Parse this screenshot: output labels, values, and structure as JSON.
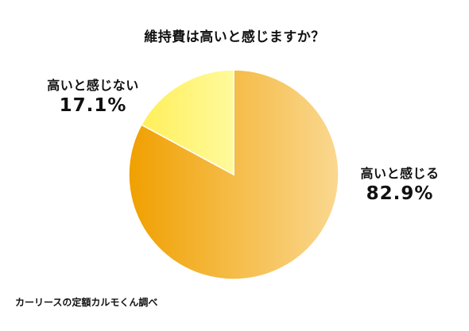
{
  "chart_data": {
    "type": "pie",
    "title": "維持費は高いと感じますか？",
    "categories": [
      "高いと感じる",
      "高いと感じない"
    ],
    "values": [
      82.9,
      17.1
    ],
    "value_labels": [
      "82.9%",
      "17.1%"
    ],
    "colors": {
      "high_gradient_start": "#F0A000",
      "high_gradient_end": "#FAD890",
      "low_gradient_start": "#FFEF5A",
      "low_gradient_end": "#FFFA9C",
      "slice_border": "#FFFFFF"
    }
  },
  "source": "カーリースの定額カルモくん調べ"
}
